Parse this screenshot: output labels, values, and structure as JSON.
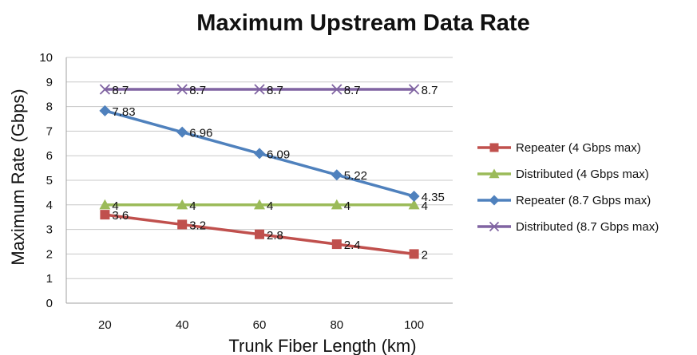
{
  "chart_data": {
    "type": "line",
    "title": "Maximum Upstream Data Rate",
    "xlabel": "Trunk Fiber Length (km)",
    "ylabel": "Maximum Rate (Gbps)",
    "x": [
      20,
      40,
      60,
      80,
      100
    ],
    "x_tick_labels": [
      "20",
      "40",
      "60",
      "80",
      "100"
    ],
    "ylim": [
      0,
      10
    ],
    "y_tick_labels": [
      "0",
      "1",
      "2",
      "3",
      "4",
      "5",
      "6",
      "7",
      "8",
      "9",
      "10"
    ],
    "grid": "horizontal",
    "legend_position": "right",
    "series": [
      {
        "name": "Repeater (4 Gbps max)",
        "values": [
          3.6,
          3.2,
          2.8,
          2.4,
          2
        ],
        "labels": [
          "3.6",
          "3.2",
          "2.8",
          "2.4",
          "2"
        ],
        "color": "#c0504d",
        "marker": "square"
      },
      {
        "name": "Distributed (4 Gbps max)",
        "values": [
          4,
          4,
          4,
          4,
          4
        ],
        "labels": [
          "4",
          "4",
          "4",
          "4",
          "4"
        ],
        "color": "#9bbb59",
        "marker": "triangle"
      },
      {
        "name": "Repeater (8.7 Gbps max)",
        "values": [
          7.83,
          6.96,
          6.09,
          5.22,
          4.35
        ],
        "labels": [
          "7.83",
          "6.96",
          "6.09",
          "5.22",
          "4.35"
        ],
        "color": "#4f81bd",
        "marker": "diamond"
      },
      {
        "name": "Distributed (8.7 Gbps max)",
        "values": [
          8.7,
          8.7,
          8.7,
          8.7,
          8.7
        ],
        "labels": [
          "8.7",
          "8.7",
          "8.7",
          "8.7",
          "8.7"
        ],
        "color": "#8064a2",
        "marker": "x"
      }
    ]
  }
}
